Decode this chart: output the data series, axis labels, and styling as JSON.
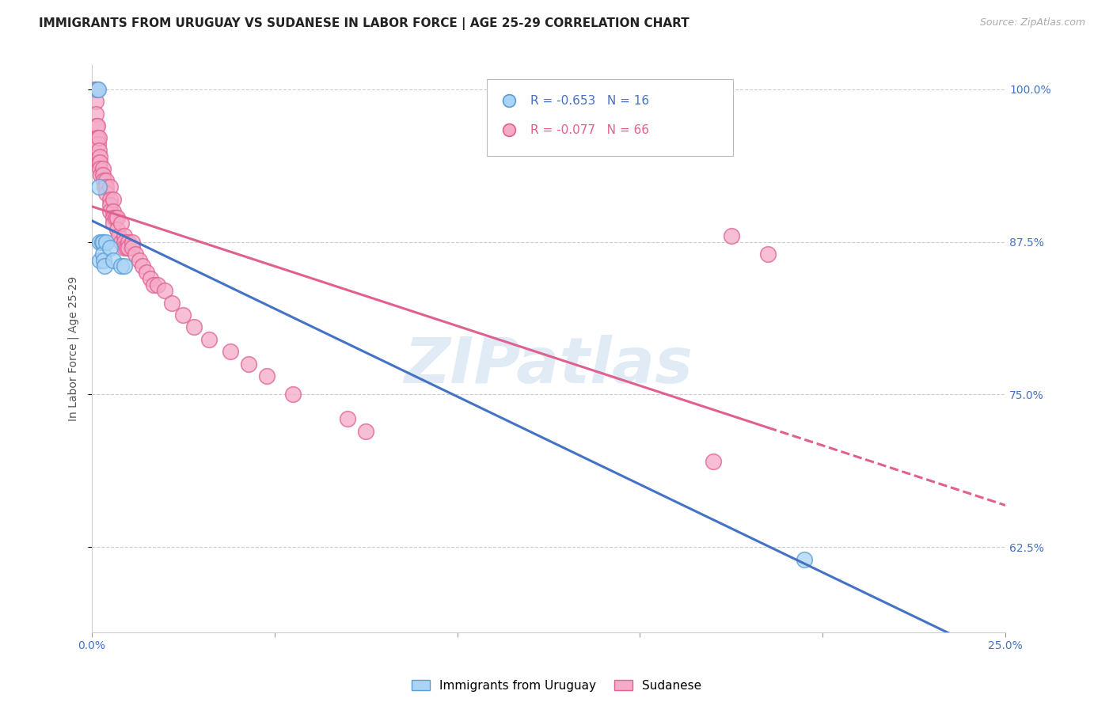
{
  "title": "IMMIGRANTS FROM URUGUAY VS SUDANESE IN LABOR FORCE | AGE 25-29 CORRELATION CHART",
  "source": "Source: ZipAtlas.com",
  "ylabel": "In Labor Force | Age 25-29",
  "xlim": [
    0.0,
    0.25
  ],
  "ylim": [
    0.555,
    1.02
  ],
  "x_ticks": [
    0.0,
    0.05,
    0.1,
    0.15,
    0.2,
    0.25
  ],
  "x_tick_labels": [
    "0.0%",
    "",
    "",
    "",
    "",
    "25.0%"
  ],
  "y_ticks": [
    0.625,
    0.75,
    0.875,
    1.0
  ],
  "y_tick_labels": [
    "62.5%",
    "75.0%",
    "87.5%",
    "100.0%"
  ],
  "background_color": "#ffffff",
  "grid_color": "#cccccc",
  "uruguay_fill_color": "#aad4f5",
  "uruguay_edge_color": "#5b9bd5",
  "sudanese_fill_color": "#f5aac8",
  "sudanese_edge_color": "#e06090",
  "uruguay_line_color": "#4472C4",
  "sudanese_line_color": "#E06090",
  "legend_R_uruguay": "R = -0.653",
  "legend_N_uruguay": "N = 16",
  "legend_R_sudanese": "R = -0.077",
  "legend_N_sudanese": "N = 66",
  "uruguay_scatter_x": [
    0.0015,
    0.0018,
    0.002,
    0.0022,
    0.0022,
    0.0028,
    0.003,
    0.003,
    0.0032,
    0.0035,
    0.004,
    0.005,
    0.006,
    0.008,
    0.009,
    0.195
  ],
  "uruguay_scatter_y": [
    1.0,
    1.0,
    0.92,
    0.875,
    0.86,
    0.875,
    0.875,
    0.865,
    0.86,
    0.855,
    0.875,
    0.87,
    0.86,
    0.855,
    0.855,
    0.615
  ],
  "sudanese_scatter_x": [
    0.001,
    0.001,
    0.0012,
    0.0012,
    0.0013,
    0.0015,
    0.0015,
    0.0016,
    0.0018,
    0.002,
    0.002,
    0.002,
    0.0022,
    0.0022,
    0.0023,
    0.0025,
    0.003,
    0.003,
    0.0032,
    0.0035,
    0.004,
    0.004,
    0.004,
    0.005,
    0.005,
    0.005,
    0.005,
    0.006,
    0.006,
    0.006,
    0.006,
    0.0065,
    0.007,
    0.007,
    0.0075,
    0.008,
    0.008,
    0.009,
    0.009,
    0.009,
    0.0095,
    0.01,
    0.01,
    0.011,
    0.011,
    0.012,
    0.013,
    0.014,
    0.015,
    0.016,
    0.017,
    0.018,
    0.02,
    0.022,
    0.025,
    0.028,
    0.032,
    0.038,
    0.043,
    0.048,
    0.055,
    0.07,
    0.075,
    0.17,
    0.175,
    0.185
  ],
  "sudanese_scatter_y": [
    1.0,
    1.0,
    0.99,
    0.98,
    0.97,
    0.96,
    0.97,
    0.96,
    0.955,
    0.96,
    0.95,
    0.94,
    0.945,
    0.94,
    0.935,
    0.93,
    0.935,
    0.93,
    0.925,
    0.92,
    0.925,
    0.92,
    0.915,
    0.92,
    0.91,
    0.905,
    0.9,
    0.91,
    0.9,
    0.895,
    0.89,
    0.895,
    0.895,
    0.885,
    0.88,
    0.89,
    0.875,
    0.88,
    0.875,
    0.87,
    0.87,
    0.875,
    0.87,
    0.875,
    0.87,
    0.865,
    0.86,
    0.855,
    0.85,
    0.845,
    0.84,
    0.84,
    0.835,
    0.825,
    0.815,
    0.805,
    0.795,
    0.785,
    0.775,
    0.765,
    0.75,
    0.73,
    0.72,
    0.695,
    0.88,
    0.865
  ],
  "watermark_text": "ZIPatlas",
  "title_fontsize": 11,
  "axis_label_fontsize": 10,
  "tick_fontsize": 10,
  "legend_fontsize": 11
}
